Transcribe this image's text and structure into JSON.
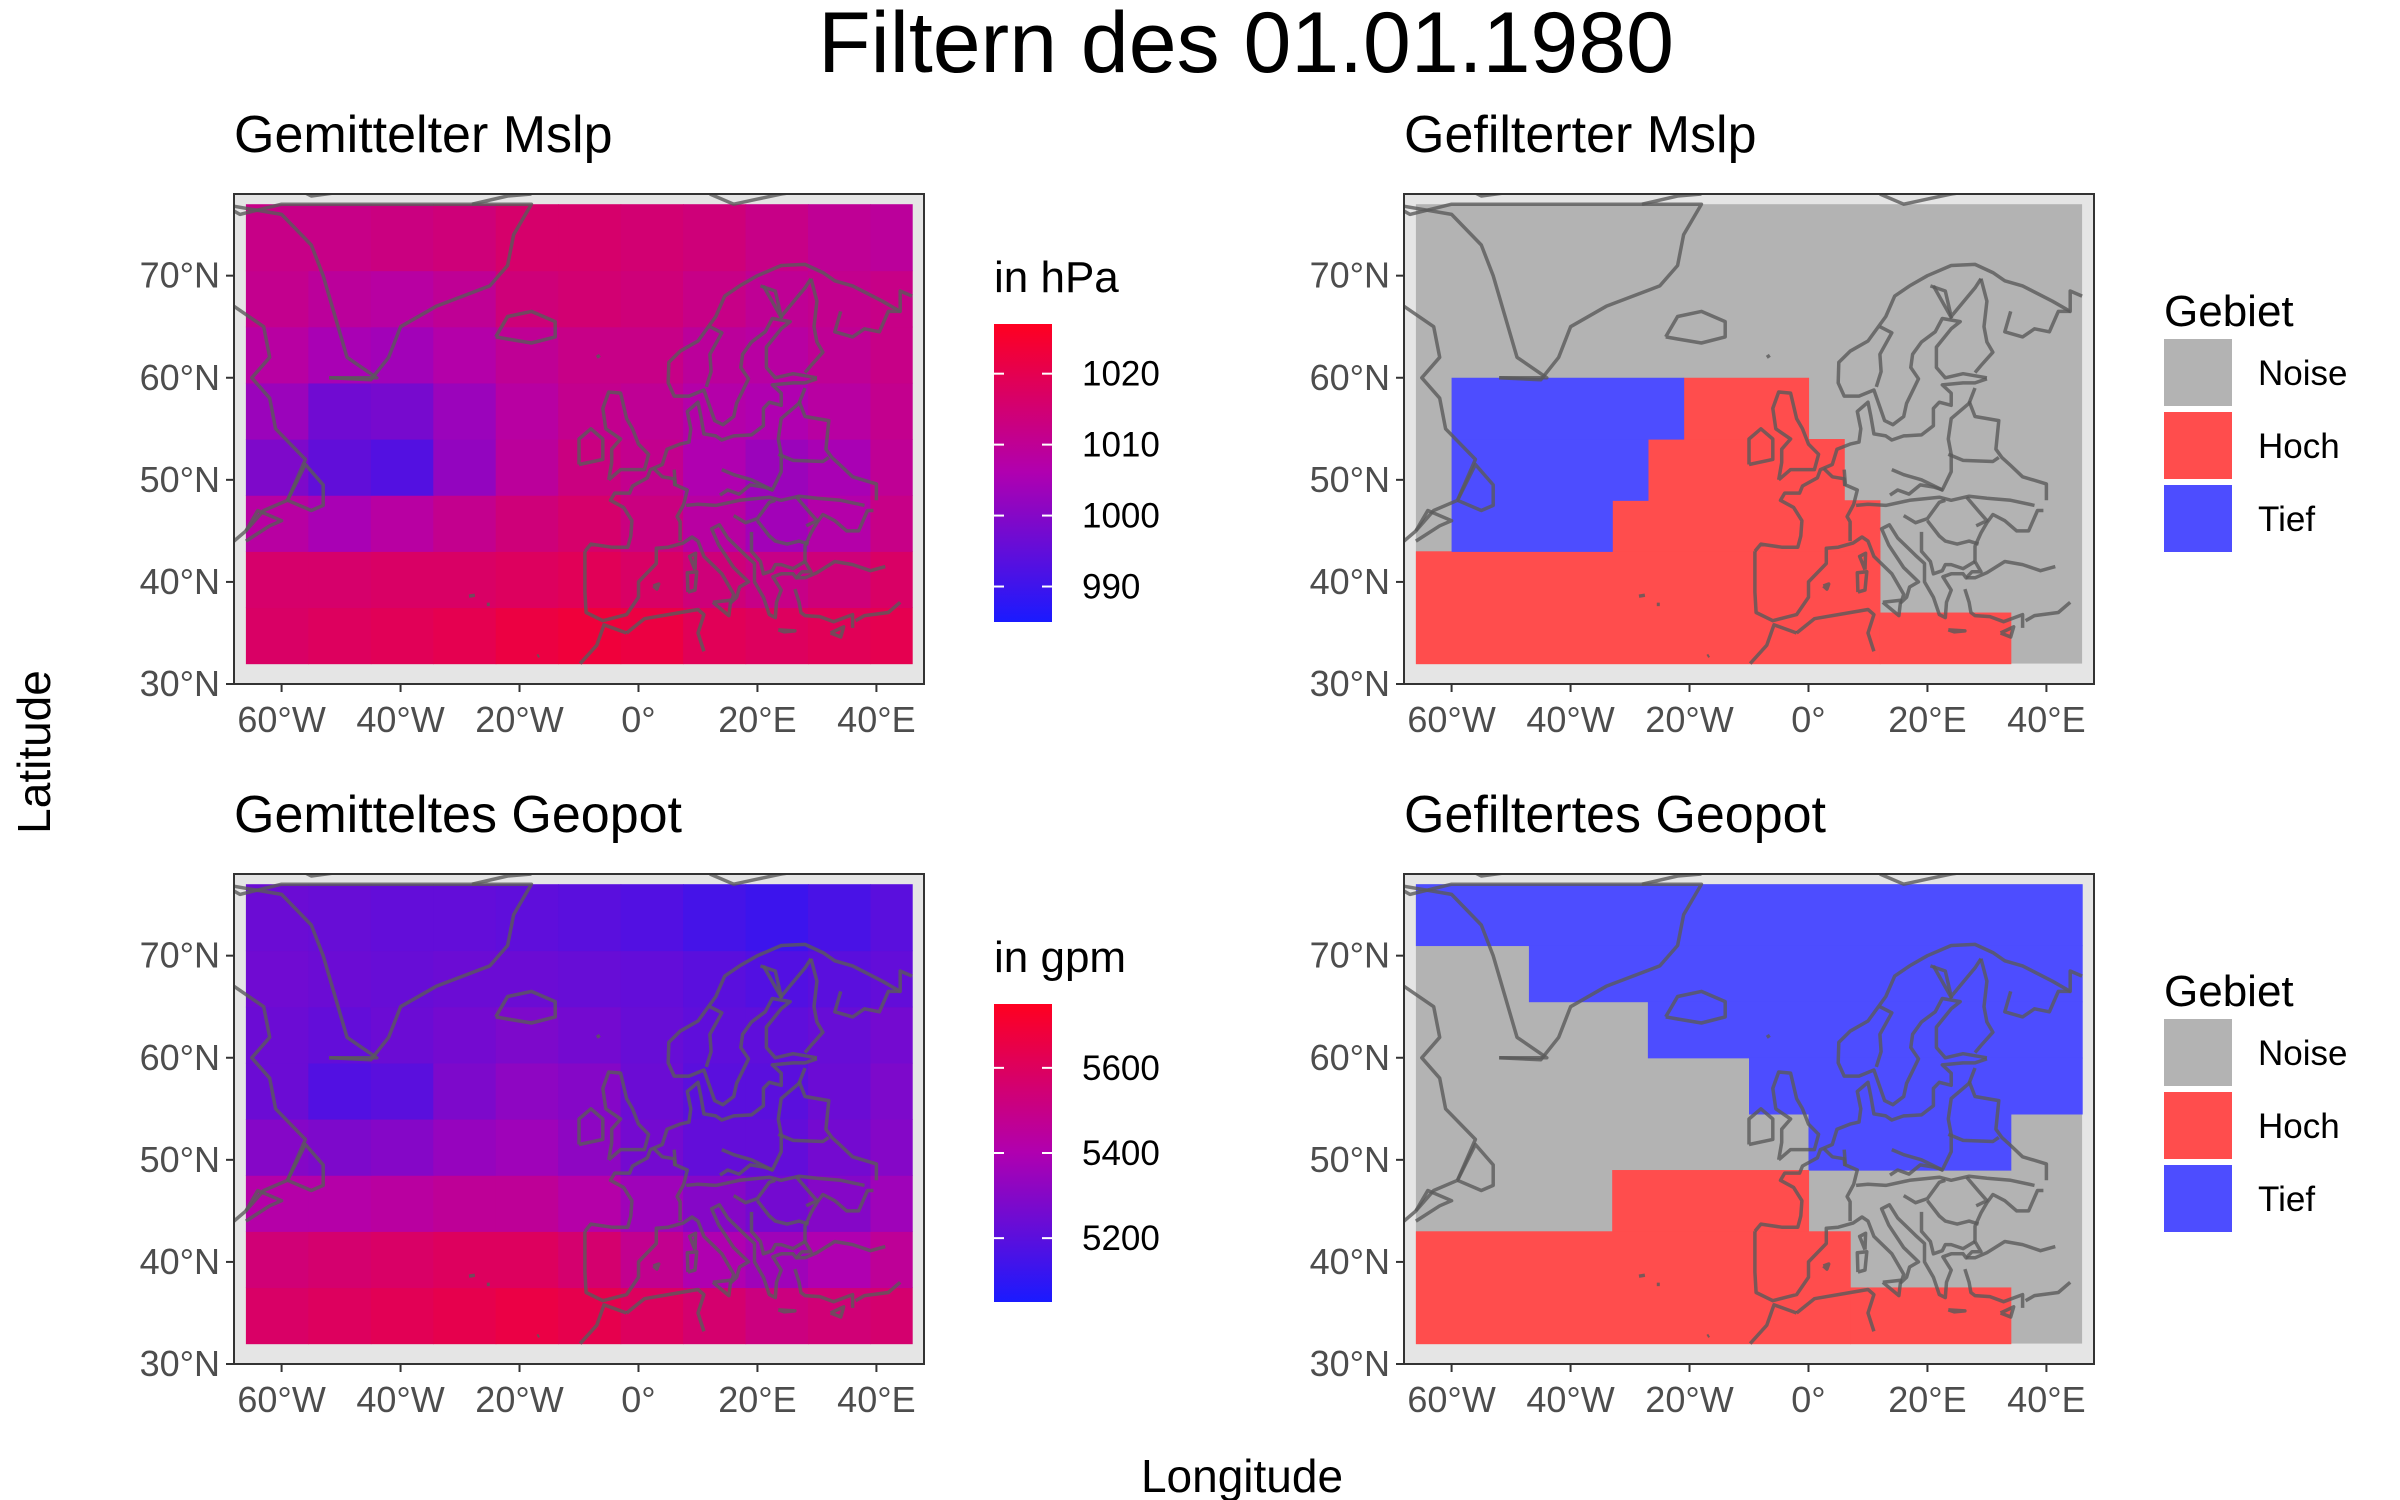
{
  "figure": {
    "title": "Filtern des 01.01.1980",
    "xlabel": "Longitude",
    "ylabel": "Latitude"
  },
  "axes": {
    "x_ticks": [
      {
        "value": -60,
        "label": "60°W"
      },
      {
        "value": -40,
        "label": "40°W"
      },
      {
        "value": -20,
        "label": "20°W"
      },
      {
        "value": 0,
        "label": "0°"
      },
      {
        "value": 20,
        "label": "20°E"
      },
      {
        "value": 40,
        "label": "40°E"
      }
    ],
    "y_ticks": [
      {
        "value": 30,
        "label": "30°N"
      },
      {
        "value": 40,
        "label": "40°N"
      },
      {
        "value": 50,
        "label": "50°N"
      },
      {
        "value": 60,
        "label": "60°N"
      },
      {
        "value": 70,
        "label": "70°N"
      }
    ],
    "xlim": [
      -68,
      48
    ],
    "ylim": [
      30,
      78
    ]
  },
  "colors": {
    "low": "#1a1aff",
    "mid": "#b000b0",
    "high": "#ff0020",
    "noise": "#b3b3b3",
    "hoch": "#ff4d4d",
    "tief": "#4d4dff",
    "coast": "#5a5a5a",
    "panel_bg": "#e5e5e5"
  },
  "chart_data": [
    {
      "type": "heatmap",
      "title": "Gemittelter Mslp",
      "legend": {
        "title": "in hPa",
        "ticks": [
          990,
          1000,
          1010,
          1020
        ],
        "range": [
          985,
          1027
        ]
      },
      "lon_edges": [
        -66,
        -55.5,
        -45,
        -34.5,
        -24,
        -13.5,
        -3,
        7.5,
        18,
        28.5,
        39,
        46
      ],
      "lat_edges": [
        32,
        37.5,
        43,
        48.5,
        54,
        59.5,
        65,
        70.5,
        77
      ],
      "values": [
        [
          1017,
          1018,
          1019,
          1020,
          1022,
          1023,
          1022,
          1019,
          1018,
          1019,
          1020
        ],
        [
          1016,
          1016,
          1017,
          1017,
          1018,
          1019,
          1017,
          1014,
          1012,
          1014,
          1017
        ],
        [
          1008,
          1005,
          1008,
          1011,
          1014,
          1016,
          1013,
          1008,
          1004,
          1007,
          1012
        ],
        [
          999,
          995,
          993,
          1002,
          1009,
          1013,
          1011,
          1006,
          1003,
          1005,
          1010
        ],
        [
          1003,
          997,
          998,
          1003,
          1008,
          1011,
          1010,
          1007,
          1006,
          1008,
          1011
        ],
        [
          1008,
          1005,
          1004,
          1007,
          1010,
          1012,
          1012,
          1009,
          1008,
          1010,
          1012
        ],
        [
          1011,
          1009,
          1008,
          1010,
          1014,
          1015,
          1014,
          1012,
          1010,
          1011,
          1012
        ],
        [
          1012,
          1012,
          1013,
          1014,
          1016,
          1016,
          1015,
          1014,
          1012,
          1010,
          1009
        ]
      ]
    },
    {
      "type": "heatmap",
      "title": "Gefilterter Mslp",
      "legend": {
        "title": "Gebiet",
        "categories": [
          "Noise",
          "Hoch",
          "Tief"
        ]
      },
      "lon_edges": [
        -66,
        46
      ],
      "lat_edges": [
        32,
        77
      ],
      "background": "Noise",
      "regions": [
        {
          "category": "Hoch",
          "lon": [
            -66,
            12
          ],
          "lat": [
            32,
            43
          ]
        },
        {
          "category": "Hoch",
          "lon": [
            12,
            34
          ],
          "lat": [
            32,
            37
          ]
        },
        {
          "category": "Hoch",
          "lon": [
            -33,
            12
          ],
          "lat": [
            43,
            48
          ]
        },
        {
          "category": "Hoch",
          "lon": [
            -27,
            6
          ],
          "lat": [
            48,
            54
          ]
        },
        {
          "category": "Hoch",
          "lon": [
            -21,
            0
          ],
          "lat": [
            54,
            60
          ]
        },
        {
          "category": "Tief",
          "lon": [
            -60,
            -33
          ],
          "lat": [
            43,
            48
          ]
        },
        {
          "category": "Tief",
          "lon": [
            -60,
            -27
          ],
          "lat": [
            48,
            54
          ]
        },
        {
          "category": "Tief",
          "lon": [
            -60,
            -21
          ],
          "lat": [
            54,
            60
          ]
        }
      ]
    },
    {
      "type": "heatmap",
      "title": "Gemitteltes Geopot",
      "legend": {
        "title": "in gpm",
        "ticks": [
          5200,
          5400,
          5600
        ],
        "range": [
          5050,
          5750
        ]
      },
      "lon_edges": [
        -66,
        -55.5,
        -45,
        -34.5,
        -24,
        -13.5,
        -3,
        7.5,
        18,
        28.5,
        39,
        46
      ],
      "lat_edges": [
        32,
        37.5,
        43,
        48.5,
        54,
        59.5,
        65,
        70.5,
        77
      ],
      "values": [
        [
          5580,
          5600,
          5620,
          5640,
          5660,
          5640,
          5600,
          5560,
          5520,
          5540,
          5560
        ],
        [
          5540,
          5560,
          5580,
          5600,
          5600,
          5560,
          5480,
          5400,
          5360,
          5400,
          5460
        ],
        [
          5420,
          5420,
          5440,
          5460,
          5460,
          5420,
          5360,
          5300,
          5260,
          5300,
          5360
        ],
        [
          5300,
          5280,
          5300,
          5340,
          5360,
          5320,
          5260,
          5220,
          5220,
          5260,
          5300
        ],
        [
          5240,
          5180,
          5200,
          5280,
          5320,
          5300,
          5240,
          5200,
          5200,
          5240,
          5280
        ],
        [
          5240,
          5220,
          5240,
          5260,
          5280,
          5260,
          5230,
          5210,
          5210,
          5230,
          5260
        ],
        [
          5250,
          5240,
          5230,
          5240,
          5240,
          5230,
          5220,
          5200,
          5180,
          5200,
          5220
        ],
        [
          5240,
          5230,
          5220,
          5220,
          5210,
          5200,
          5180,
          5150,
          5130,
          5160,
          5200
        ]
      ]
    },
    {
      "type": "heatmap",
      "title": "Gefiltertes Geopot",
      "legend": {
        "title": "Gebiet",
        "categories": [
          "Noise",
          "Hoch",
          "Tief"
        ]
      },
      "lon_edges": [
        -66,
        46
      ],
      "lat_edges": [
        32,
        77
      ],
      "background": "Noise",
      "regions": [
        {
          "category": "Tief",
          "lon": [
            -66,
            46
          ],
          "lat": [
            71,
            77
          ]
        },
        {
          "category": "Tief",
          "lon": [
            -47,
            46
          ],
          "lat": [
            65.5,
            71
          ]
        },
        {
          "category": "Tief",
          "lon": [
            -27,
            46
          ],
          "lat": [
            60,
            65.5
          ]
        },
        {
          "category": "Tief",
          "lon": [
            -10,
            46
          ],
          "lat": [
            54.5,
            60
          ]
        },
        {
          "category": "Tief",
          "lon": [
            0,
            34
          ],
          "lat": [
            49,
            54.5
          ]
        },
        {
          "category": "Hoch",
          "lon": [
            -66,
            7
          ],
          "lat": [
            32,
            43
          ]
        },
        {
          "category": "Hoch",
          "lon": [
            7,
            34
          ],
          "lat": [
            32,
            37.5
          ]
        },
        {
          "category": "Hoch",
          "lon": [
            -33,
            0
          ],
          "lat": [
            43,
            49
          ]
        }
      ]
    }
  ]
}
